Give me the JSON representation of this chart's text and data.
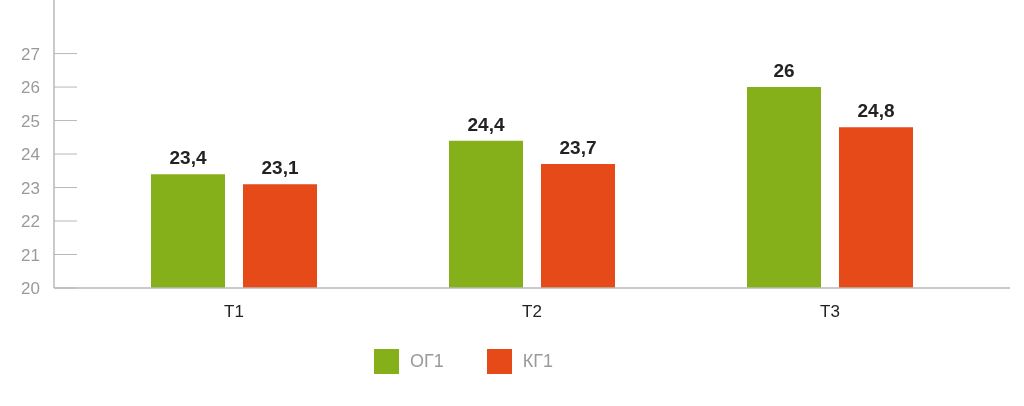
{
  "chart_data": {
    "type": "bar",
    "categories": [
      "T1",
      "T2",
      "T3"
    ],
    "series": [
      {
        "name": "ОГ1",
        "color": "#86b01a",
        "values": [
          23.4,
          24.4,
          26
        ],
        "value_labels": [
          "23,4",
          "24,4",
          "26"
        ]
      },
      {
        "name": "КГ1",
        "color": "#e54a18",
        "values": [
          23.1,
          23.7,
          24.8
        ],
        "value_labels": [
          "23,1",
          "23,7",
          "24,8"
        ]
      }
    ],
    "ylim": [
      20,
      28.6
    ],
    "yticks": [
      20,
      21,
      22,
      23,
      24,
      25,
      26,
      27
    ],
    "legend": "bottom"
  }
}
